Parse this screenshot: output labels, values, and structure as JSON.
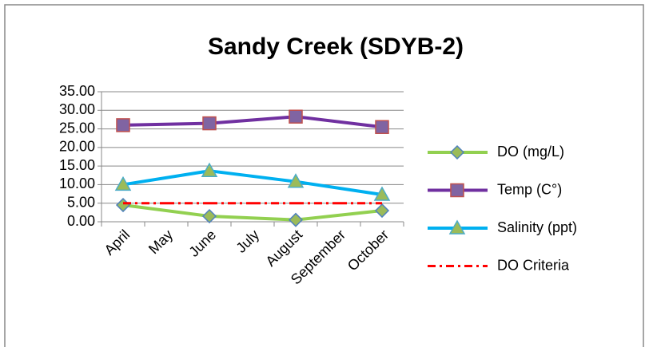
{
  "chart_data": {
    "type": "line",
    "title": "Sandy Creek (SDYB-2)",
    "categories": [
      "April",
      "May",
      "June",
      "July",
      "August",
      "September",
      "October"
    ],
    "series": [
      {
        "name": "DO (mg/L)",
        "color": "#92D050",
        "marker": "diamond",
        "marker_fill": "#9BBB59",
        "marker_stroke": "#4F81BD",
        "values": [
          4.5,
          null,
          1.5,
          null,
          0.5,
          null,
          3.0
        ]
      },
      {
        "name": "Temp (C°)",
        "color": "#7030A0",
        "marker": "square",
        "marker_fill": "#8064A2",
        "marker_stroke": "#C0504D",
        "values": [
          26.0,
          null,
          26.5,
          null,
          28.3,
          null,
          25.5
        ]
      },
      {
        "name": "Salinity (ppt)",
        "color": "#00B0F0",
        "marker": "triangle",
        "marker_fill": "#9BBB59",
        "marker_stroke": "#4BACC6",
        "values": [
          10.0,
          null,
          13.7,
          null,
          10.8,
          null,
          7.3
        ]
      },
      {
        "name": "DO Criteria",
        "color": "#FF0000",
        "dash": "dash-dot",
        "values": [
          5,
          5,
          5,
          5,
          5,
          5,
          5
        ]
      }
    ],
    "ylim": [
      0,
      35
    ],
    "yticks": [
      {
        "value": 0,
        "label": "0.00"
      },
      {
        "value": 5,
        "label": "5.00"
      },
      {
        "value": 10,
        "label": "10.00"
      },
      {
        "value": 15,
        "label": "15.00"
      },
      {
        "value": 20,
        "label": "20.00"
      },
      {
        "value": 25,
        "label": "25.00"
      },
      {
        "value": 30,
        "label": "30.00"
      },
      {
        "value": 35,
        "label": "35.00"
      }
    ],
    "grid": true,
    "legend": "right"
  }
}
